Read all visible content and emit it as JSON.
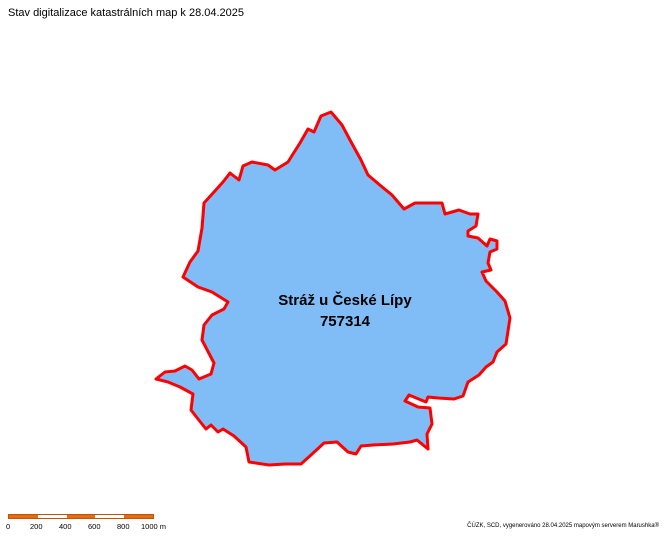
{
  "title": "Stav digitalizace katastrálních map k 28.04.2025",
  "territory": {
    "name": "Stráž u České Lípy",
    "code": "757314",
    "fill_color": "#80bdf7",
    "border_color": "#ff0000"
  },
  "scale": {
    "labels": [
      "0",
      "200",
      "400",
      "600",
      "800",
      "1000 m"
    ],
    "colors": {
      "fill": "#e56b12",
      "empty": "#ffffff"
    }
  },
  "credit": "ČÚZK, SCD, vygenerováno 28.04.2025 mapovým serverem Marushka®"
}
